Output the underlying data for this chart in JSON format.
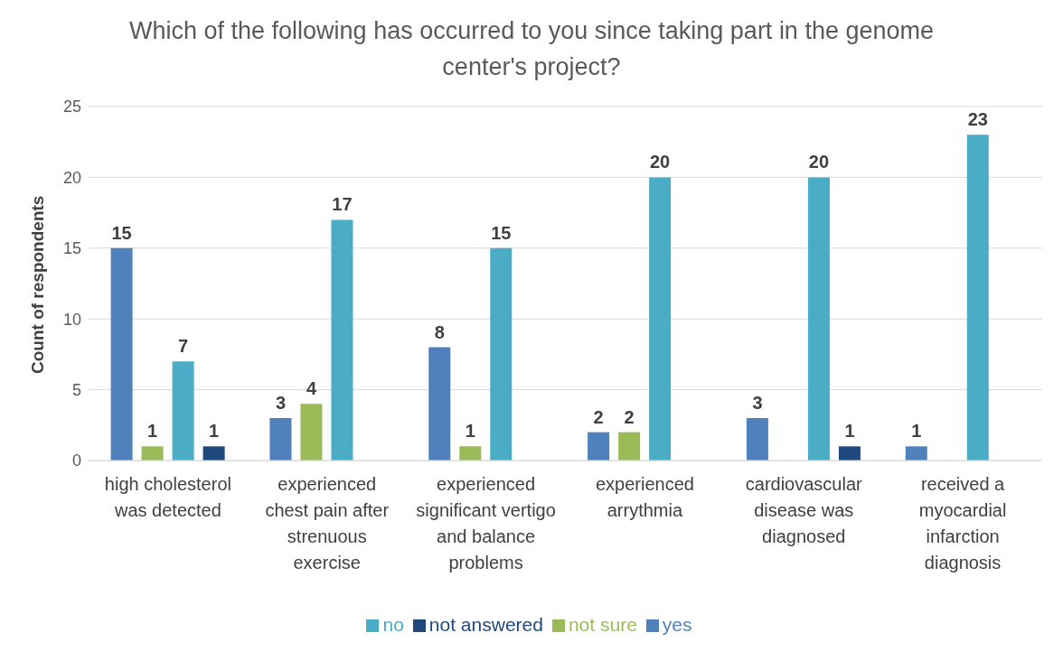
{
  "chart_data": {
    "type": "bar",
    "title": "Which of the following has occurred to you since taking part in the genome center's project?",
    "ylabel": "Count of respondents",
    "categories": [
      "high cholesterol was detected",
      "experienced chest pain after strenuous exercise",
      "experienced significant vertigo and balance problems",
      "experienced arrythmia",
      "cardiovascular disease was diagnosed",
      "received a myocardial infarction diagnosis"
    ],
    "series": [
      {
        "name": "yes",
        "color": "#4f81bd",
        "values": [
          15,
          3,
          8,
          2,
          3,
          1
        ]
      },
      {
        "name": "not sure",
        "color": "#9bbb59",
        "values": [
          1,
          4,
          1,
          2,
          null,
          null
        ]
      },
      {
        "name": "no",
        "color": "#4bacc6",
        "values": [
          7,
          17,
          15,
          20,
          20,
          23
        ]
      },
      {
        "name": "not answered",
        "color": "#1f497d",
        "values": [
          1,
          null,
          null,
          null,
          1,
          null
        ]
      }
    ],
    "ylim": [
      0,
      25
    ],
    "yticks": [
      0,
      5,
      10,
      15,
      20,
      25
    ],
    "grid": "y",
    "legend": "bottom",
    "data_labels": true
  }
}
